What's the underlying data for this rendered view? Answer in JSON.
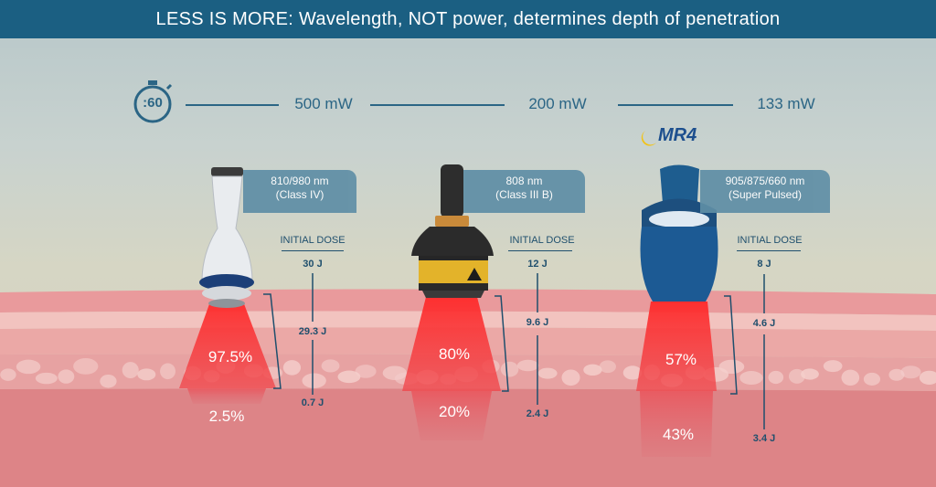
{
  "title": "LESS IS MORE: Wavelength, NOT power, determines depth of penetration",
  "timer": {
    "label": ":60",
    "icon": "stopwatch-icon"
  },
  "brand_logo": "MR4",
  "colors": {
    "title_bar": "#1b5f82",
    "text": "#2b6585",
    "beam": "#e8262b",
    "skin": "#e39a98",
    "tag": "#5f8ea6"
  },
  "devices": [
    {
      "name": "class-iv-laser",
      "power": "500 mW",
      "wavelength": "810/980 nm",
      "class": "(Class IV)",
      "dose_label": "INITIAL DOSE",
      "initial_dose": "30 J",
      "upper_dose": "29.3 J",
      "lower_dose": "0.7 J",
      "upper_pct": "97.5%",
      "lower_pct": "2.5%"
    },
    {
      "name": "class-iii-b-laser",
      "power": "200 mW",
      "wavelength": "808 nm",
      "class": "(Class III B)",
      "dose_label": "INITIAL DOSE",
      "initial_dose": "12 J",
      "upper_dose": "9.6 J",
      "lower_dose": "2.4 J",
      "upper_pct": "80%",
      "lower_pct": "20%"
    },
    {
      "name": "mr4-super-pulsed",
      "power": "133 mW",
      "wavelength": "905/875/660 nm",
      "class": "(Super Pulsed)",
      "dose_label": "INITIAL DOSE",
      "initial_dose": "8 J",
      "upper_dose": "4.6 J",
      "lower_dose": "3.4 J",
      "upper_pct": "57%",
      "lower_pct": "43%"
    }
  ]
}
